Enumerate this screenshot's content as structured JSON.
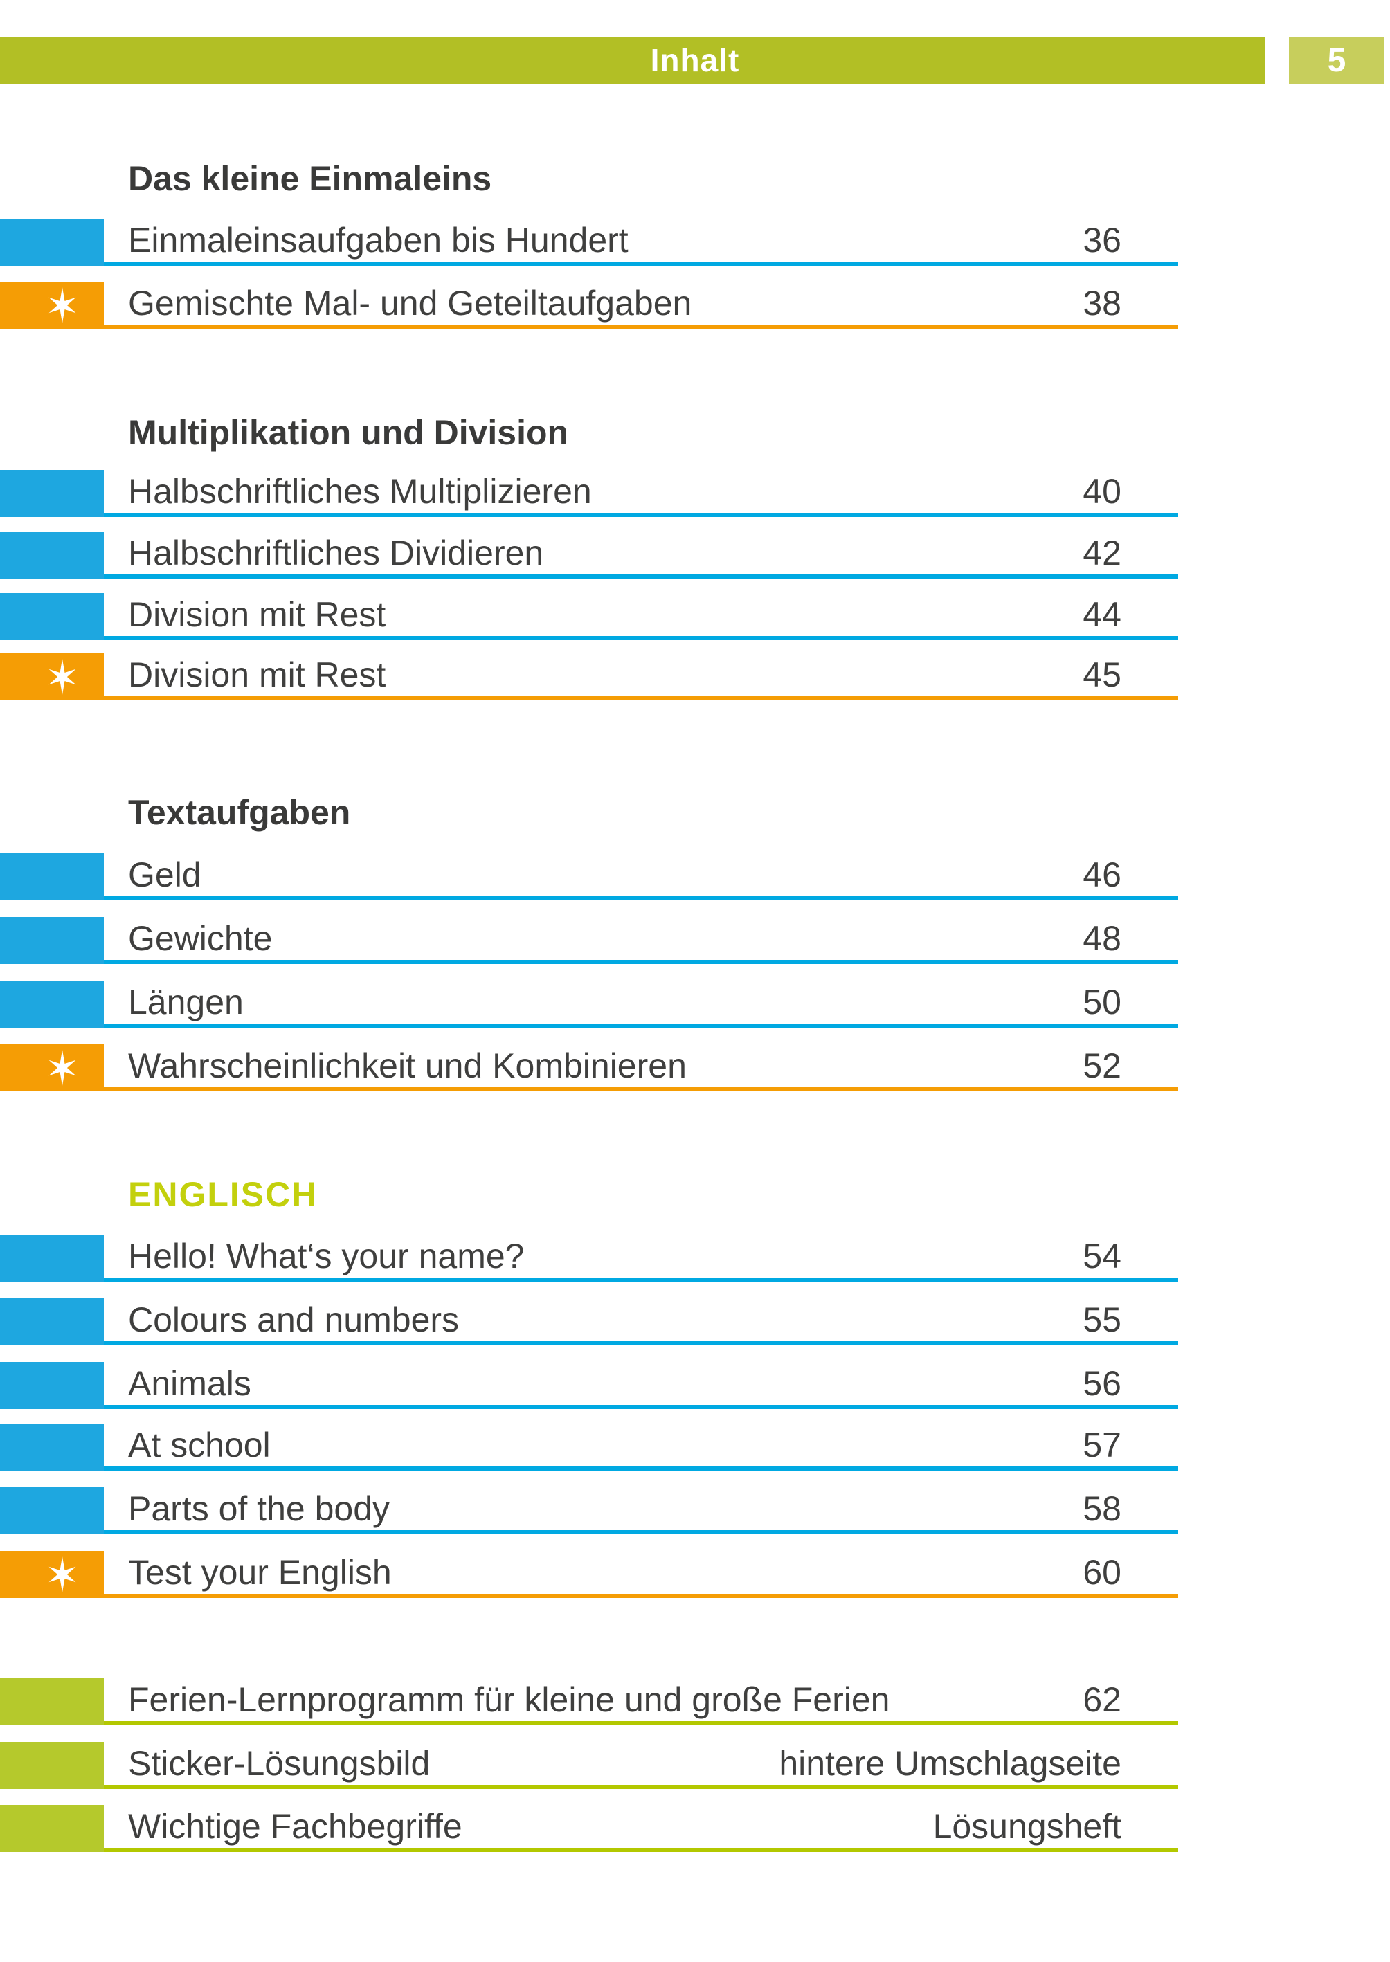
{
  "header": {
    "title": "Inhalt",
    "page_number": "5"
  },
  "colors": {
    "header_bar": "#b2bf25",
    "page_number_box": "#c7ce5c",
    "blue": "#1ea7e0",
    "blue_line": "#00a9e2",
    "orange": "#f59d05",
    "green": "#b5c92c",
    "green_line": "#b3c800",
    "englisch_heading": "#c3d00d",
    "text": "#3f3f3e",
    "heading_text": "#3a3a39"
  },
  "icons": {
    "featured_marker": "star-icon"
  },
  "sections": [
    {
      "heading": "Das kleine Einmaleins",
      "style": "default",
      "rows": [
        {
          "label": "Einmaleinsaufgaben bis Hundert",
          "value": "36",
          "marker": "blue",
          "featured": false
        },
        {
          "label": "Gemischte Mal- und Geteiltaufgaben",
          "value": "38",
          "marker": "orange",
          "featured": true
        }
      ]
    },
    {
      "heading": "Multiplikation und Division",
      "style": "default",
      "rows": [
        {
          "label": "Halbschriftliches Multiplizieren",
          "value": "40",
          "marker": "blue",
          "featured": false
        },
        {
          "label": "Halbschriftliches Dividieren",
          "value": "42",
          "marker": "blue",
          "featured": false
        },
        {
          "label": "Division mit Rest",
          "value": "44",
          "marker": "blue",
          "featured": false
        },
        {
          "label": "Division mit Rest",
          "value": "45",
          "marker": "orange",
          "featured": true
        }
      ]
    },
    {
      "heading": "Textaufgaben",
      "style": "default",
      "rows": [
        {
          "label": "Geld",
          "value": "46",
          "marker": "blue",
          "featured": false
        },
        {
          "label": "Gewichte",
          "value": "48",
          "marker": "blue",
          "featured": false
        },
        {
          "label": "Längen",
          "value": "50",
          "marker": "blue",
          "featured": false
        },
        {
          "label": "Wahrscheinlichkeit und Kombinieren",
          "value": "52",
          "marker": "orange",
          "featured": true
        }
      ]
    },
    {
      "heading": "ENGLISCH",
      "style": "accent",
      "rows": [
        {
          "label": "Hello! What‘s your name?",
          "value": "54",
          "marker": "blue",
          "featured": false
        },
        {
          "label": "Colours and numbers",
          "value": "55",
          "marker": "blue",
          "featured": false
        },
        {
          "label": "Animals",
          "value": "56",
          "marker": "blue",
          "featured": false
        },
        {
          "label": "At school",
          "value": "57",
          "marker": "blue",
          "featured": false
        },
        {
          "label": "Parts of the body",
          "value": "58",
          "marker": "blue",
          "featured": false
        },
        {
          "label": "Test your English",
          "value": "60",
          "marker": "orange",
          "featured": true
        }
      ]
    },
    {
      "heading": "",
      "style": "none",
      "rows": [
        {
          "label": "Ferien-Lernprogramm für kleine und große Ferien",
          "value": "62",
          "marker": "green",
          "featured": false
        },
        {
          "label": "Sticker-Lösungsbild",
          "value": "hintere Umschlagseite",
          "marker": "green",
          "featured": false
        },
        {
          "label": "Wichtige Fachbegriffe",
          "value": "Lösungsheft",
          "marker": "green",
          "featured": false
        }
      ]
    }
  ]
}
